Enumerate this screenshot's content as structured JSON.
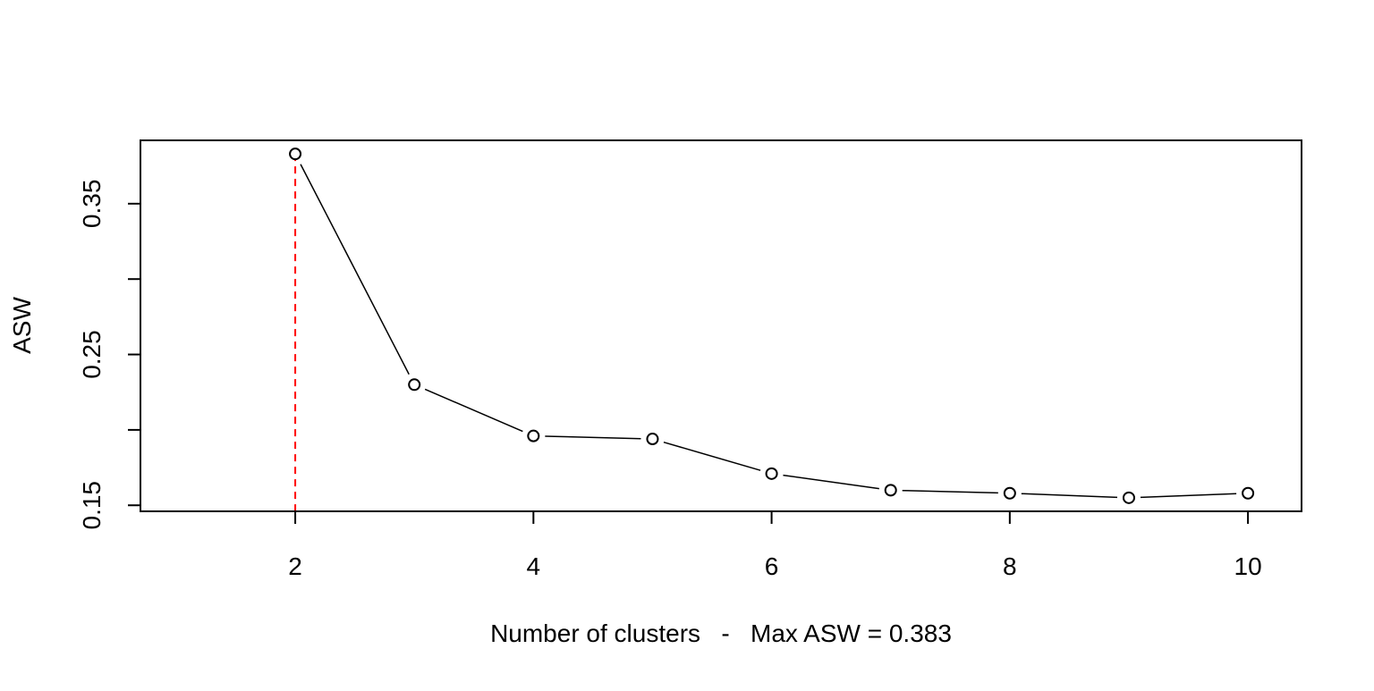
{
  "chart_data": {
    "type": "line",
    "title": "",
    "xlabel": "Number of clusters   -   Max ASW = 0.383",
    "ylabel": "ASW",
    "x": [
      2,
      3,
      4,
      5,
      6,
      7,
      8,
      9,
      10
    ],
    "series": [
      {
        "values": [
          0.383,
          0.23,
          0.196,
          0.194,
          0.171,
          0.16,
          0.158,
          0.155,
          0.158
        ],
        "color": "#000000",
        "marker": "open-circle"
      }
    ],
    "xlim": [
      0.7,
      10.45
    ],
    "ylim": [
      0.146,
      0.392
    ],
    "xticks": [
      2,
      4,
      6,
      8,
      10
    ],
    "xtick_labels": [
      "2",
      "4",
      "6",
      "8",
      "10"
    ],
    "yticks": [
      0.15,
      0.2,
      0.25,
      0.3,
      0.35
    ],
    "ytick_labels": [
      "0.15",
      "",
      "0.25",
      "",
      "0.35"
    ],
    "reference_line": {
      "x": 2,
      "color": "#ff0000",
      "style": "dashed"
    },
    "grid": false,
    "legend": "none"
  }
}
